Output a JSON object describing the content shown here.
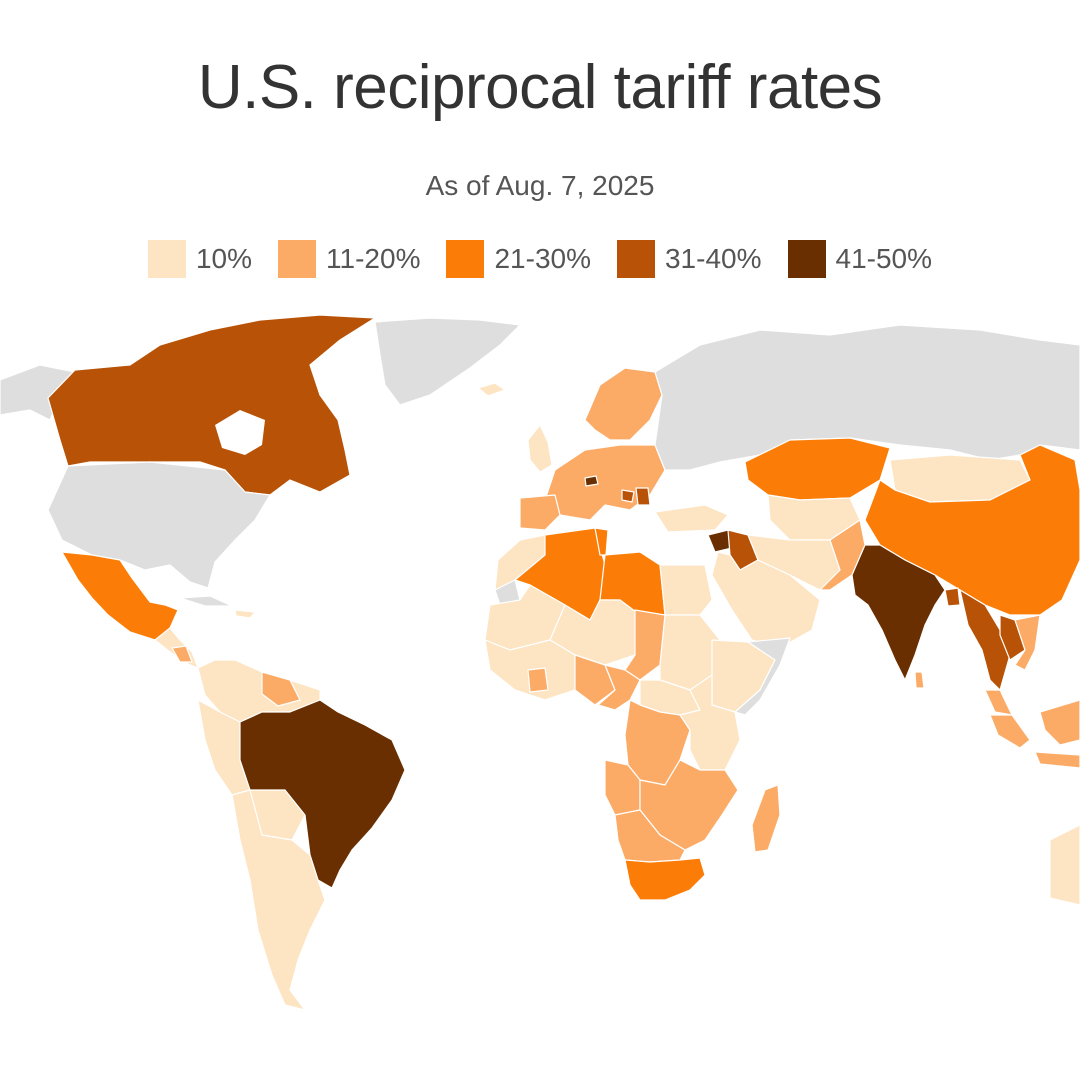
{
  "title": "U.S. reciprocal tariff rates",
  "subtitle": "As of Aug. 7, 2025",
  "legend": [
    {
      "label": "10%",
      "color": "#fde4c2"
    },
    {
      "label": "11-20%",
      "color": "#fbab66"
    },
    {
      "label": "21-30%",
      "color": "#fb7d07"
    },
    {
      "label": "31-40%",
      "color": "#b85206"
    },
    {
      "label": "41-50%",
      "color": "#6a2f00"
    }
  ],
  "colors": {
    "no_data": "#dedede",
    "r10": "#fde4c2",
    "r11_20": "#fbab66",
    "r21_30": "#fb7d07",
    "r31_40": "#b85206",
    "r41_50": "#6a2f00"
  }
}
